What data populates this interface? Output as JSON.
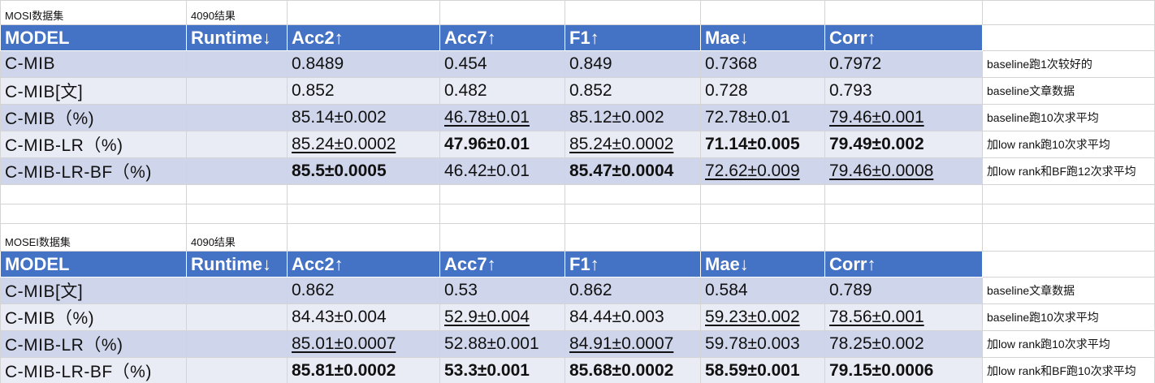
{
  "tables": [
    {
      "caption": "MOSI数据集",
      "subcaption": "4090结果",
      "headers": [
        "MODEL",
        "Runtime↓",
        "Acc2↑",
        "Acc7↑",
        "F1↑",
        "Mae↓",
        "Corr↑"
      ],
      "rows": [
        {
          "model": "C-MIB",
          "runtime": "",
          "cells": [
            "0.8489",
            "0.454",
            "0.849",
            "0.7368",
            "0.7972"
          ],
          "note": "baseline跑1次较好的"
        },
        {
          "model": "C-MIB[文]",
          "runtime": "",
          "cells": [
            "0.852",
            "0.482",
            "0.852",
            "0.728",
            "0.793"
          ],
          "note": "baseline文章数据"
        },
        {
          "model": "C-MIB（%)",
          "runtime": "",
          "cells": [
            "85.14±0.002",
            "46.78±0.01",
            "85.12±0.002",
            "72.78±0.01",
            "79.46±0.001"
          ],
          "note": "baseline跑10次求平均"
        },
        {
          "model": "C-MIB-LR（%)",
          "runtime": "",
          "cells": [
            "85.24±0.0002",
            "47.96±0.01",
            "85.24±0.0002",
            "71.14±0.005",
            "79.49±0.002"
          ],
          "note": "加low rank跑10次求平均"
        },
        {
          "model": "C-MIB-LR-BF（%)",
          "runtime": "",
          "cells": [
            "85.5±0.0005",
            "46.42±0.01",
            "85.47±0.0004",
            "72.62±0.009",
            "79.46±0.0008"
          ],
          "note": "加low rank和BF跑12次求平均"
        }
      ]
    },
    {
      "caption": "MOSEI数据集",
      "subcaption": "4090结果",
      "headers": [
        "MODEL",
        "Runtime↓",
        "Acc2↑",
        "Acc7↑",
        "F1↑",
        "Mae↓",
        "Corr↑"
      ],
      "rows": [
        {
          "model": "C-MIB[文]",
          "runtime": "",
          "cells": [
            "0.862",
            "0.53",
            "0.862",
            "0.584",
            "0.789"
          ],
          "note": "baseline文章数据"
        },
        {
          "model": "C-MIB（%)",
          "runtime": "",
          "cells": [
            "84.43±0.004",
            "52.9±0.004",
            "84.44±0.003",
            "59.23±0.002",
            "78.56±0.001"
          ],
          "note": "baseline跑10次求平均"
        },
        {
          "model": "C-MIB-LR（%)",
          "runtime": "",
          "cells": [
            "85.01±0.0007",
            "52.88±0.001",
            "84.91±0.0007",
            "59.78±0.003",
            "78.25±0.002"
          ],
          "note": "加low rank跑10次求平均"
        },
        {
          "model": "C-MIB-LR-BF（%)",
          "runtime": "",
          "cells": [
            "85.81±0.0002",
            "53.3±0.001",
            "85.68±0.0002",
            "58.59±0.001",
            "79.15±0.0006"
          ],
          "note": "加low rank和BF跑10次求平均"
        }
      ]
    }
  ],
  "colors": {
    "header_fill": "#4472c4",
    "band_fill": "#cfd5ea",
    "band_alt_fill": "#e9ebf5",
    "gridline": "#d4d4d4"
  }
}
